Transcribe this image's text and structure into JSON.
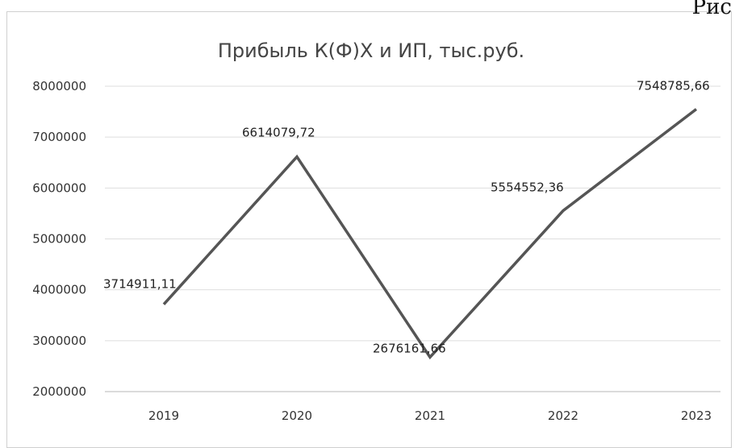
{
  "corner_text": "Рис",
  "chart_data": {
    "type": "line",
    "title": "Прибыль К(Ф)Х и ИП, тыс.руб.",
    "xlabel": "",
    "ylabel": "",
    "categories": [
      "2019",
      "2020",
      "2021",
      "2022",
      "2023"
    ],
    "series": [
      {
        "values": [
          3714911.11,
          6614079.72,
          2676161.66,
          5554552.36,
          7548785.66
        ],
        "labels": [
          "3714911,11",
          "6614079,72",
          "2676161,66",
          "5554552,36",
          "7548785,66"
        ],
        "color": "#555555"
      }
    ],
    "ylim": [
      2000000,
      8000000
    ],
    "yticks": [
      "2000000",
      "3000000",
      "4000000",
      "5000000",
      "6000000",
      "7000000",
      "8000000"
    ],
    "grid": true,
    "legend": "none"
  }
}
